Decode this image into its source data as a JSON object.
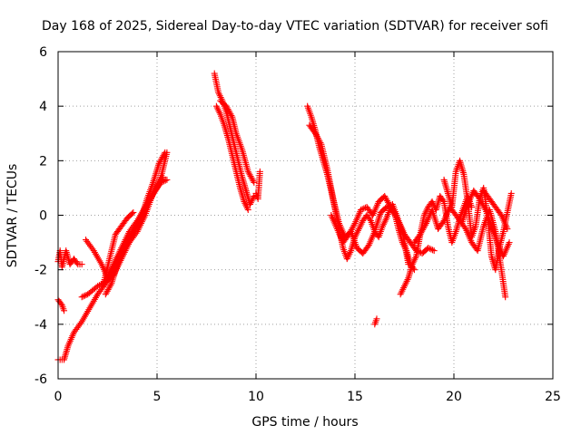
{
  "chart_data": {
    "type": "scatter",
    "title": "Day 168 of 2025, Sidereal Day-to-day VTEC variation (SDTVAR) for receiver sofi",
    "xlabel": "GPS time / hours",
    "ylabel": "SDTVAR / TECUs",
    "xlim": [
      0,
      25
    ],
    "ylim": [
      -6,
      6
    ],
    "xticks": [
      0,
      5,
      10,
      15,
      20,
      25
    ],
    "yticks": [
      -6,
      -4,
      -2,
      0,
      2,
      4,
      6
    ],
    "grid": true,
    "marker": "+",
    "color": "#ff0000",
    "series": [
      {
        "name": "SDTVAR",
        "segments": [
          {
            "x": [
              0.0,
              0.1,
              0.2,
              0.4,
              0.6,
              0.8,
              1.0,
              1.2
            ],
            "y": [
              -1.7,
              -1.3,
              -1.9,
              -1.3,
              -1.8,
              -1.6,
              -1.8,
              -1.8
            ]
          },
          {
            "x": [
              0.0,
              0.2,
              0.3
            ],
            "y": [
              -3.1,
              -3.3,
              -3.5
            ]
          },
          {
            "x": [
              0.0,
              0.3,
              0.5,
              0.8,
              1.2,
              1.6,
              2.0,
              2.5,
              3.0,
              3.5,
              4.0,
              4.5,
              5.0,
              5.3
            ],
            "y": [
              -5.3,
              -5.3,
              -4.8,
              -4.3,
              -3.9,
              -3.4,
              -2.9,
              -2.4,
              -1.7,
              -1.0,
              -0.3,
              0.4,
              1.0,
              1.4
            ]
          },
          {
            "x": [
              1.2,
              1.5,
              2.0,
              2.5,
              2.8,
              3.2,
              3.6,
              4.0,
              4.4,
              4.8,
              5.2,
              5.5
            ],
            "y": [
              -3.0,
              -2.9,
              -2.6,
              -2.4,
              -2.2,
              -1.6,
              -1.0,
              -0.6,
              0.0,
              0.8,
              1.4,
              2.3
            ]
          },
          {
            "x": [
              1.4,
              1.8,
              2.2,
              2.5,
              2.8,
              3.2,
              3.6,
              4.0,
              4.4,
              4.8,
              5.2,
              5.5
            ],
            "y": [
              -0.9,
              -1.3,
              -1.8,
              -2.3,
              -1.8,
              -1.2,
              -0.6,
              -0.2,
              0.3,
              0.8,
              1.2,
              1.3
            ]
          },
          {
            "x": [
              2.3,
              2.6,
              2.9,
              3.2,
              3.5,
              3.8
            ],
            "y": [
              -2.5,
              -1.6,
              -0.7,
              -0.4,
              -0.1,
              0.1
            ]
          },
          {
            "x": [
              2.4,
              2.7,
              3.0,
              3.3,
              3.6,
              3.9,
              4.2,
              4.5,
              4.8,
              5.1,
              5.4
            ],
            "y": [
              -2.9,
              -2.5,
              -1.8,
              -1.3,
              -0.9,
              -0.5,
              -0.1,
              0.6,
              1.2,
              1.9,
              2.3
            ]
          },
          {
            "x": [
              7.9,
              8.1,
              8.3,
              8.5,
              8.7,
              8.9,
              9.1,
              9.3,
              9.5,
              9.7,
              9.9
            ],
            "y": [
              5.2,
              4.5,
              4.2,
              3.8,
              3.2,
              2.6,
              2.0,
              1.4,
              0.9,
              0.4,
              0.7
            ]
          },
          {
            "x": [
              8.0,
              8.2,
              8.4,
              8.6,
              8.8,
              9.0,
              9.2,
              9.4,
              9.6
            ],
            "y": [
              4.0,
              3.7,
              3.3,
              2.8,
              2.2,
              1.6,
              1.0,
              0.5,
              0.2
            ]
          },
          {
            "x": [
              8.2,
              8.5,
              8.8,
              9.0,
              9.3,
              9.6,
              9.9
            ],
            "y": [
              4.2,
              4.0,
              3.6,
              3.0,
              2.4,
              1.6,
              1.2
            ]
          },
          {
            "x": [
              10.0,
              10.1,
              10.2
            ],
            "y": [
              0.8,
              0.6,
              1.6
            ]
          },
          {
            "x": [
              12.6,
              12.8,
              13.0,
              13.2,
              13.4,
              13.6,
              13.8,
              14.0,
              14.2,
              14.4,
              14.6,
              14.8,
              15.0,
              15.2,
              15.4,
              15.6,
              15.8,
              16.0,
              16.2,
              16.4,
              16.6,
              16.8,
              17.0,
              17.2,
              17.4,
              17.6,
              17.8,
              18.0
            ],
            "y": [
              4.0,
              3.6,
              3.1,
              2.5,
              2.0,
              1.5,
              0.9,
              0.2,
              -0.5,
              -1.2,
              -1.6,
              -1.3,
              -0.8,
              -0.5,
              -0.2,
              0.0,
              -0.2,
              -0.6,
              -0.8,
              -0.4,
              -0.1,
              0.3,
              0.1,
              -0.5,
              -1.0,
              -1.3,
              -1.8,
              -2.0
            ]
          },
          {
            "x": [
              12.7,
              13.0,
              13.3,
              13.6,
              13.9,
              14.2,
              14.5,
              14.8,
              15.1,
              15.4,
              15.7,
              16.0,
              16.3,
              16.6,
              16.9,
              17.2,
              17.5,
              17.8,
              18.1,
              18.4,
              18.7,
              19.0
            ],
            "y": [
              3.3,
              3.0,
              2.6,
              1.7,
              0.6,
              -0.3,
              -0.8,
              -0.6,
              -1.2,
              -1.4,
              -1.1,
              -0.6,
              0.1,
              0.3,
              0.4,
              -0.2,
              -0.7,
              -1.0,
              -1.3,
              -1.4,
              -1.2,
              -1.3
            ]
          },
          {
            "x": [
              13.8,
              14.1,
              14.4,
              14.7,
              15.0,
              15.3,
              15.6,
              15.9,
              16.2,
              16.5,
              16.8,
              17.1,
              17.4,
              17.7
            ],
            "y": [
              0.0,
              -0.5,
              -1.0,
              -0.7,
              -0.3,
              0.2,
              0.3,
              0.0,
              0.5,
              0.7,
              0.3,
              -0.1,
              -0.6,
              -1.8
            ]
          },
          {
            "x": [
              16.0,
              16.1
            ],
            "y": [
              -4.0,
              -3.8
            ]
          },
          {
            "x": [
              17.3,
              17.5,
              17.7,
              17.9,
              18.1,
              18.3,
              18.5,
              18.7,
              18.9,
              19.1,
              19.3,
              19.5,
              19.7,
              19.9,
              20.1,
              20.3,
              20.5,
              20.7,
              20.9
            ],
            "y": [
              -2.9,
              -2.6,
              -2.3,
              -1.8,
              -1.5,
              -0.7,
              0.0,
              0.3,
              0.5,
              0.2,
              0.7,
              0.5,
              -0.4,
              -1.0,
              -0.6,
              -0.1,
              0.3,
              0.7,
              0.3
            ]
          },
          {
            "x": [
              18.0,
              18.3,
              18.6,
              18.9,
              19.2,
              19.5,
              19.8,
              20.1,
              20.4,
              20.7,
              21.0,
              21.3,
              21.6,
              21.9,
              22.2,
              22.5,
              22.8
            ],
            "y": [
              -1.0,
              -0.7,
              -0.3,
              0.2,
              -0.5,
              -0.2,
              0.3,
              0.0,
              -0.3,
              0.4,
              0.9,
              0.6,
              0.2,
              -0.4,
              -1.0,
              -1.5,
              -1.0
            ]
          },
          {
            "x": [
              19.5,
              19.7,
              19.9,
              20.1,
              20.3,
              20.5,
              20.7,
              20.9,
              21.1,
              21.3,
              21.5,
              21.7,
              21.9,
              22.1,
              22.3,
              22.5,
              22.7,
              22.9
            ],
            "y": [
              1.3,
              0.8,
              0.3,
              1.6,
              2.0,
              1.5,
              0.5,
              -0.8,
              -0.4,
              0.6,
              1.0,
              0.0,
              -1.5,
              -2.0,
              -1.2,
              -0.6,
              0.1,
              0.8
            ]
          },
          {
            "x": [
              20.3,
              20.6,
              20.9,
              21.2,
              21.5,
              21.8,
              22.1,
              22.4,
              22.6
            ],
            "y": [
              -0.2,
              -0.5,
              -1.0,
              -1.3,
              -0.4,
              0.2,
              -0.6,
              -2.0,
              -3.0
            ]
          },
          {
            "x": [
              21.5,
              21.8,
              22.1,
              22.4,
              22.7
            ],
            "y": [
              0.9,
              0.6,
              0.3,
              0.0,
              -0.5
            ]
          }
        ]
      }
    ]
  }
}
